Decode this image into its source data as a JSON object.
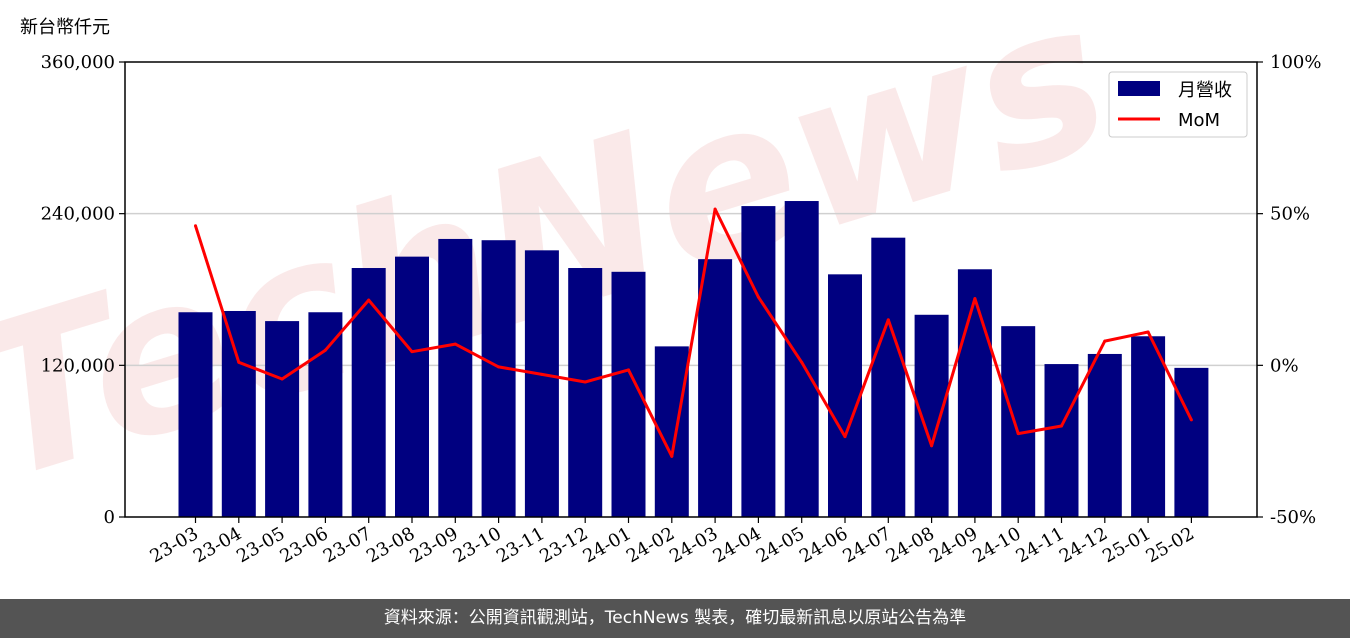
{
  "chart_data": {
    "type": "bar",
    "unit_label": "新台幣仟元",
    "categories": [
      "23-03",
      "23-04",
      "23-05",
      "23-06",
      "23-07",
      "23-08",
      "23-09",
      "23-10",
      "23-11",
      "23-12",
      "24-01",
      "24-02",
      "24-03",
      "24-04",
      "24-05",
      "24-06",
      "24-07",
      "24-08",
      "24-09",
      "24-10",
      "24-11",
      "24-12",
      "25-01",
      "25-02"
    ],
    "series": [
      {
        "name": "月營收",
        "type": "bar",
        "axis": "left",
        "color": "#000080",
        "values": [
          162000,
          163000,
          155000,
          162000,
          197000,
          206000,
          220000,
          219000,
          211000,
          197000,
          194000,
          135000,
          204000,
          246000,
          250000,
          192000,
          221000,
          160000,
          196000,
          151000,
          121000,
          129000,
          143000,
          118000
        ]
      },
      {
        "name": "MoM",
        "type": "line",
        "axis": "right",
        "color": "#ff0000",
        "values": [
          46.0,
          1.0,
          -4.5,
          5.0,
          21.5,
          4.5,
          7.0,
          -0.5,
          -3.0,
          -5.5,
          -1.5,
          -30.0,
          51.5,
          22.5,
          1.0,
          -23.5,
          15.0,
          -26.5,
          22.0,
          -22.5,
          -20.0,
          8.0,
          11.0,
          -18.0
        ]
      }
    ],
    "y_left": {
      "range": [
        0,
        360000
      ],
      "ticks": [
        0,
        120000,
        240000,
        360000
      ],
      "tick_labels": [
        "0",
        "120,000",
        "240,000",
        "360,000"
      ]
    },
    "y_right": {
      "range": [
        -50,
        100
      ],
      "ticks": [
        -50,
        0,
        50,
        100
      ],
      "tick_labels": [
        "-50%",
        "0%",
        "50%",
        "100%"
      ]
    },
    "grid": "horizontal",
    "legend": "top-right",
    "watermark": "TechNews"
  },
  "footer": {
    "text": "資料來源：公開資訊觀測站，TechNews 製表，確切最新訊息以原站公告為準"
  }
}
